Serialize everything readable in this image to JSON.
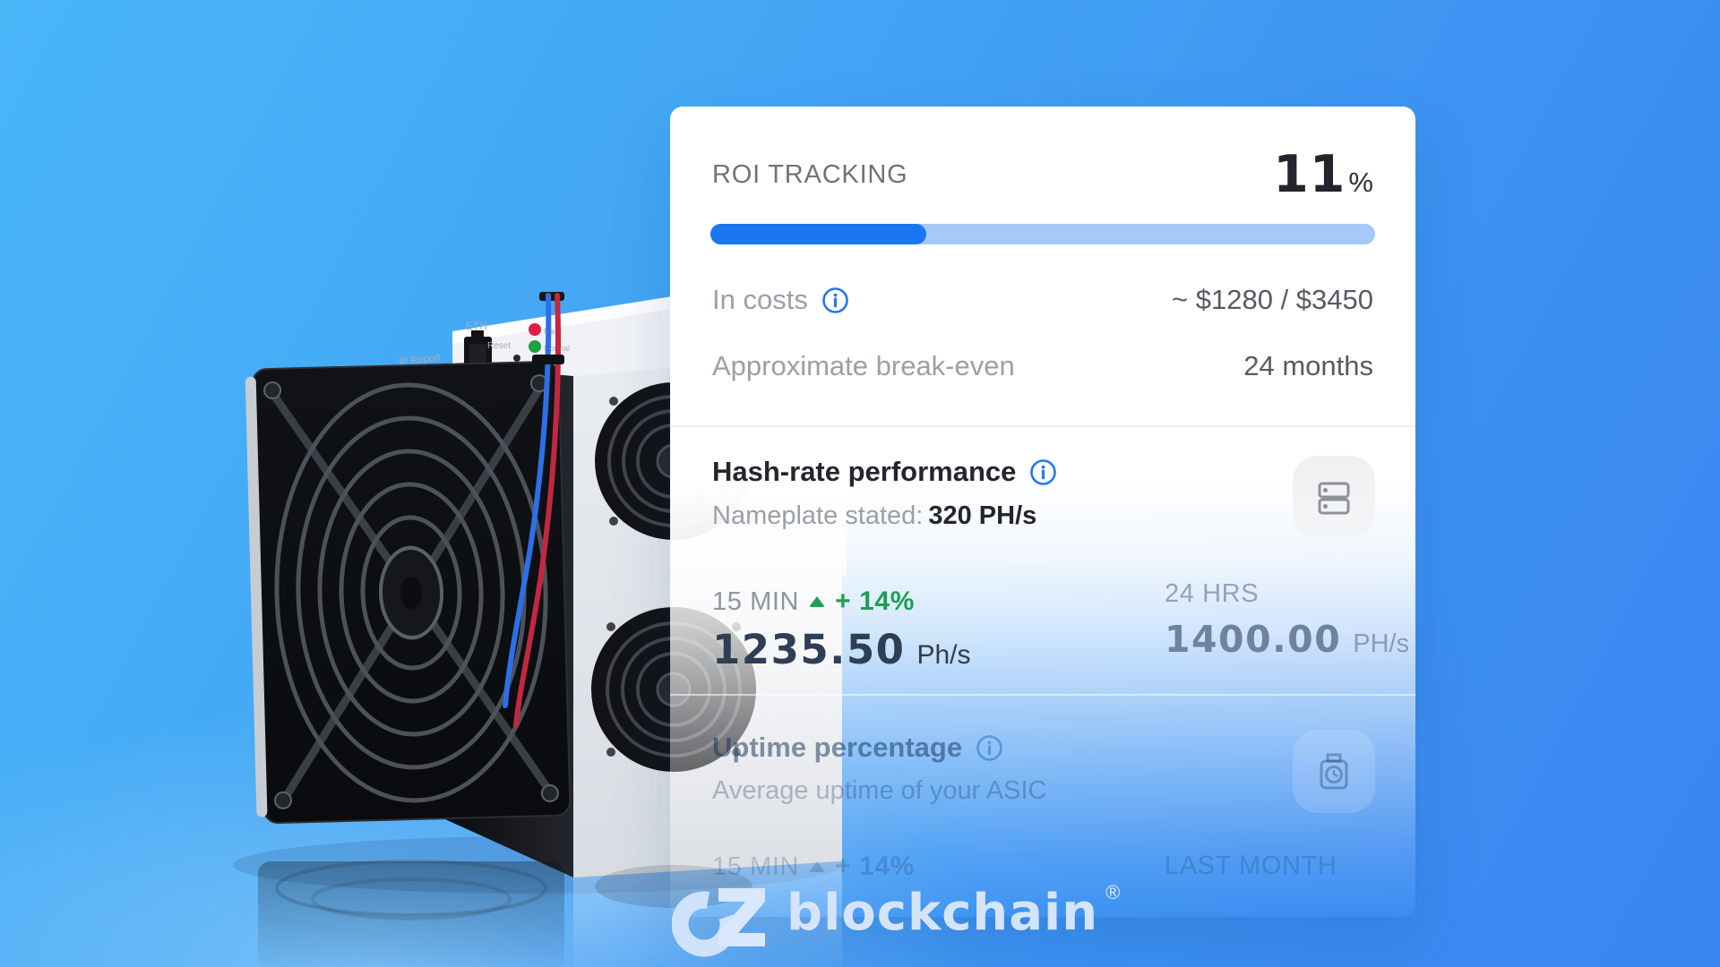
{
  "colors": {
    "accent_blue": "#1b76f1",
    "progress_track": "#a6c9f9",
    "positive_green": "#1f9e57",
    "bg_top": "#49b6f8",
    "bg_bottom": "#3a85f0",
    "value_navy": "#2e3f55"
  },
  "card": {
    "roi": {
      "title": "ROI TRACKING",
      "value": "11",
      "unit": "%",
      "progress_percent": 32.5,
      "rows": [
        {
          "label": "In costs",
          "value": "~ $1280 / $3450"
        },
        {
          "label": "Approximate break-even",
          "value": "24 months"
        }
      ]
    },
    "hashrate": {
      "title": "Hash-rate performance",
      "nameplate_label": "Nameplate stated:",
      "nameplate_value": "320 PH/s",
      "stat_15min": {
        "period": "15 MIN",
        "delta": "+ 14%",
        "value": "1235.50",
        "unit": "Ph/s"
      },
      "stat_24hrs": {
        "period": "24 HRS",
        "value": "1400.00",
        "unit": "PH/s"
      }
    },
    "uptime": {
      "title": "Uptime percentage",
      "subtitle": "Average uptime of your ASIC",
      "stat_15min": {
        "period": "15 MIN",
        "delta": "+ 14%"
      },
      "stat_last_month": {
        "period": "LAST MONTH"
      }
    }
  },
  "logo": {
    "name": "blockchain",
    "registered": "®"
  },
  "machine": {
    "eth_label": "ETH",
    "reset_label": "Reset",
    "ip_report_label": "IP Report",
    "fault_label": "Fault",
    "normal_label": "Normal"
  }
}
